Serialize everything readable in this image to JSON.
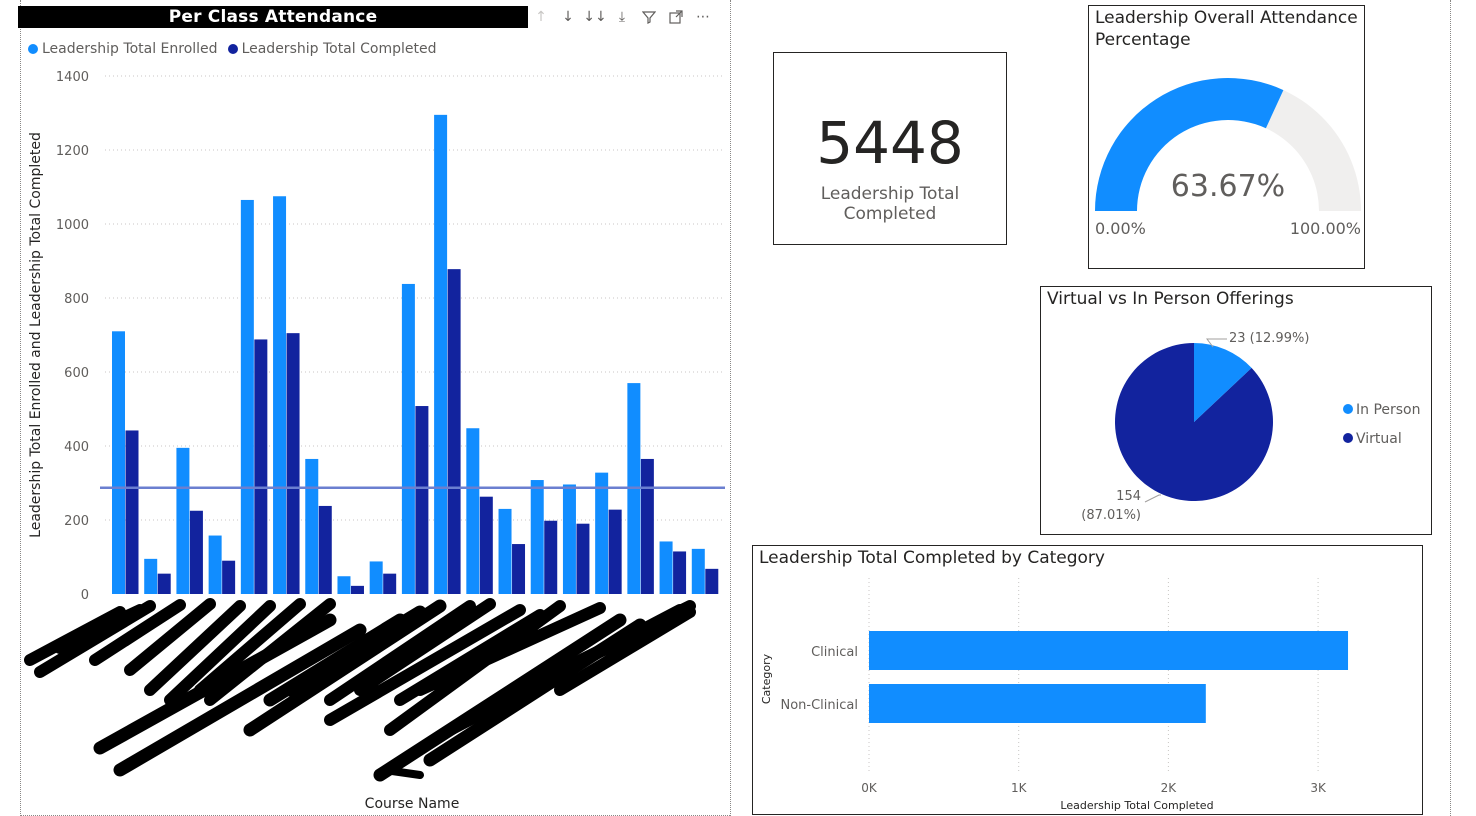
{
  "bar_panel": {
    "title": "Per Class Attendance",
    "toolbar_icons": [
      "arrow-up-icon",
      "arrow-down-icon",
      "double-arrow-down-icon",
      "expand-hierarchy-icon",
      "filter-icon",
      "focus-mode-icon",
      "more-options-icon"
    ]
  },
  "kpi": {
    "value": "5448",
    "label": "Leadership Total Completed"
  },
  "gauge": {
    "title_line1": "Leadership Overall Attendance",
    "title_line2": "Percentage",
    "value_label": "63.67%",
    "min_label": "0.00%",
    "max_label": "100.00%"
  },
  "pie_panel": {
    "title": "Virtual vs In Person Offerings",
    "in_person_label": "23 (12.99%)",
    "virtual_label_value": "154",
    "virtual_label_pct": "(87.01%)"
  },
  "hbar_panel": {
    "title": "Leadership Total Completed by Category"
  },
  "colors": {
    "enrolled": "#118dff",
    "completed": "#12239e",
    "average_line": "#6b7fd0",
    "gauge_track": "#f0efee"
  },
  "chart_data": [
    {
      "type": "bar",
      "title": "Per Class Attendance",
      "xlabel": "Course Name",
      "ylabel": "Leadership Total Enrolled and Leadership Total Completed",
      "ylim": [
        0,
        1400
      ],
      "yticks": [
        "0",
        "200",
        "400",
        "600",
        "800",
        "1000",
        "1200",
        "1400"
      ],
      "category_count": 19,
      "series": [
        {
          "name": "Leadership Total Enrolled",
          "values": [
            710,
            95,
            395,
            158,
            1065,
            1075,
            365,
            48,
            88,
            838,
            1295,
            448,
            230,
            308,
            296,
            328,
            570,
            142,
            122
          ]
        },
        {
          "name": "Leadership Total Completed",
          "values": [
            442,
            55,
            225,
            90,
            688,
            705,
            238,
            22,
            55,
            508,
            878,
            263,
            135,
            198,
            190,
            228,
            365,
            115,
            68
          ]
        }
      ],
      "reference_line": 287,
      "legend": "top-left",
      "grid": true
    },
    {
      "type": "gauge",
      "title": "Leadership Overall Attendance Percentage",
      "value": 63.67,
      "min": 0,
      "max": 100
    },
    {
      "type": "pie",
      "title": "Virtual vs In Person Offerings",
      "categories": [
        "In Person",
        "Virtual"
      ],
      "values": [
        23,
        154
      ],
      "percent_labels": [
        "12.99%",
        "87.01%"
      ],
      "legend": "right"
    },
    {
      "type": "bar",
      "orientation": "horizontal",
      "title": "Leadership Total Completed by Category",
      "categories": [
        "Clinical",
        "Non-Clinical"
      ],
      "values": [
        3200,
        2250
      ],
      "xlabel": "Leadership Total Completed",
      "ylabel": "Category",
      "xlim": [
        0,
        3300
      ],
      "xticks": [
        "0K",
        "1K",
        "2K",
        "3K"
      ],
      "grid": true
    }
  ]
}
